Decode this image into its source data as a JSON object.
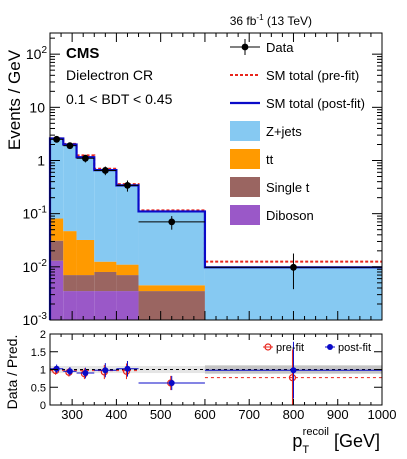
{
  "header": {
    "lumi": "36 fb",
    "lumi_sup": "-1",
    "energy": " (13 TeV)"
  },
  "labels": {
    "cms": "CMS",
    "region": "Dielectron CR",
    "bdt": "0.1 < BDT < 0.45",
    "ylabel_top": "Events / GeV",
    "ylabel_bottom": "Data / Pred.",
    "xlabel_main": "p",
    "xlabel_sub": "T",
    "xlabel_sup": "recoil",
    "xlabel_unit": " [GeV]"
  },
  "legend_top": [
    {
      "label": "Data",
      "kind": "marker"
    },
    {
      "label": "SM total (pre-fit)",
      "kind": "dashed",
      "color": "#e8251c"
    },
    {
      "label": "SM total (post-fit)",
      "kind": "line",
      "color": "#0a0ac8"
    },
    {
      "label": "Z+jets",
      "kind": "fill",
      "color": "#86c9f2"
    },
    {
      "label": "tt",
      "kind": "fill",
      "color": "#ff9a00"
    },
    {
      "label": "Single t",
      "kind": "fill",
      "color": "#9a6561"
    },
    {
      "label": "Diboson",
      "kind": "fill",
      "color": "#9a58c8"
    }
  ],
  "legend_bottom": [
    {
      "label": "pre-fit",
      "color": "#e8251c",
      "marker": "open-circle"
    },
    {
      "label": "post-fit",
      "color": "#0a0ac8",
      "marker": "filled-circle"
    }
  ],
  "chart_data": {
    "type": "bar",
    "stacked": true,
    "log_y": true,
    "xlim": [
      250,
      1000
    ],
    "ylim": [
      0.001,
      250
    ],
    "ratio_ylim": [
      0,
      2
    ],
    "bin_edges": [
      250,
      280,
      310,
      350,
      400,
      450,
      600,
      1000
    ],
    "x_tick_labels": [
      "300",
      "400",
      "500",
      "600",
      "700",
      "800",
      "900",
      "1000"
    ],
    "x_ticks": [
      300,
      400,
      500,
      600,
      700,
      800,
      900,
      1000
    ],
    "y_tick_values": [
      0.001,
      0.01,
      0.1,
      1,
      10,
      100
    ],
    "y_tick_labels": [
      {
        "base": "10",
        "exp": "-3"
      },
      {
        "base": "10",
        "exp": "-2"
      },
      {
        "base": "10",
        "exp": "-1"
      },
      {
        "base": "1",
        "exp": ""
      },
      {
        "base": "10",
        "exp": ""
      },
      {
        "base": "10",
        "exp": "2"
      }
    ],
    "ratio_tick_labels": [
      "0",
      "0.5",
      "1",
      "1.5",
      "2"
    ],
    "ratio_tick_values": [
      0,
      0.5,
      1,
      1.5,
      2
    ],
    "stack": [
      {
        "name": "Diboson",
        "values": [
          0.013,
          0.0035,
          0.0035,
          0.0035,
          0.0035,
          0.001,
          0.001
        ]
      },
      {
        "name": "Single t",
        "values": [
          0.018,
          0.0035,
          0.0035,
          0.0045,
          0.0035,
          0.0035,
          0.001
        ]
      },
      {
        "name": "tt",
        "values": [
          0.05,
          0.04,
          0.025,
          0.0045,
          0.004,
          0.001,
          0.001
        ]
      },
      {
        "name": "Z+jets",
        "values": [
          2.4,
          1.85,
          1.1,
          0.66,
          0.33,
          0.11,
          0.0098
        ]
      }
    ],
    "sm_total_prefit": [
      2.6,
      2.05,
      1.25,
      0.7,
      0.36,
      0.115,
      0.0125
    ],
    "sm_total_postfit": [
      2.6,
      2.0,
      1.15,
      0.66,
      0.34,
      0.11,
      0.0098
    ],
    "data": {
      "x": [
        265,
        295,
        330,
        375,
        425,
        525,
        800
      ],
      "y": [
        2.5,
        1.9,
        1.1,
        0.65,
        0.34,
        0.07,
        0.0098
      ],
      "err_up": [
        0.3,
        0.25,
        0.18,
        0.12,
        0.08,
        0.02,
        0.008
      ],
      "err_down": [
        0.3,
        0.25,
        0.18,
        0.12,
        0.08,
        0.02,
        0.006
      ]
    },
    "ratio_postfit": {
      "x": [
        265,
        295,
        330,
        375,
        425,
        525,
        800
      ],
      "y": [
        1.02,
        0.95,
        0.9,
        0.98,
        1.02,
        0.62,
        0.98
      ],
      "err": [
        0.12,
        0.12,
        0.15,
        0.2,
        0.22,
        0.2,
        0.8
      ]
    },
    "ratio_prefit": {
      "x": [
        265,
        295,
        330,
        375,
        425,
        525,
        800
      ],
      "y": [
        0.97,
        0.92,
        0.88,
        0.93,
        0.95,
        0.62,
        0.77
      ]
    },
    "ratio_band": {
      "lo": 0.9,
      "hi": 1.1
    }
  }
}
